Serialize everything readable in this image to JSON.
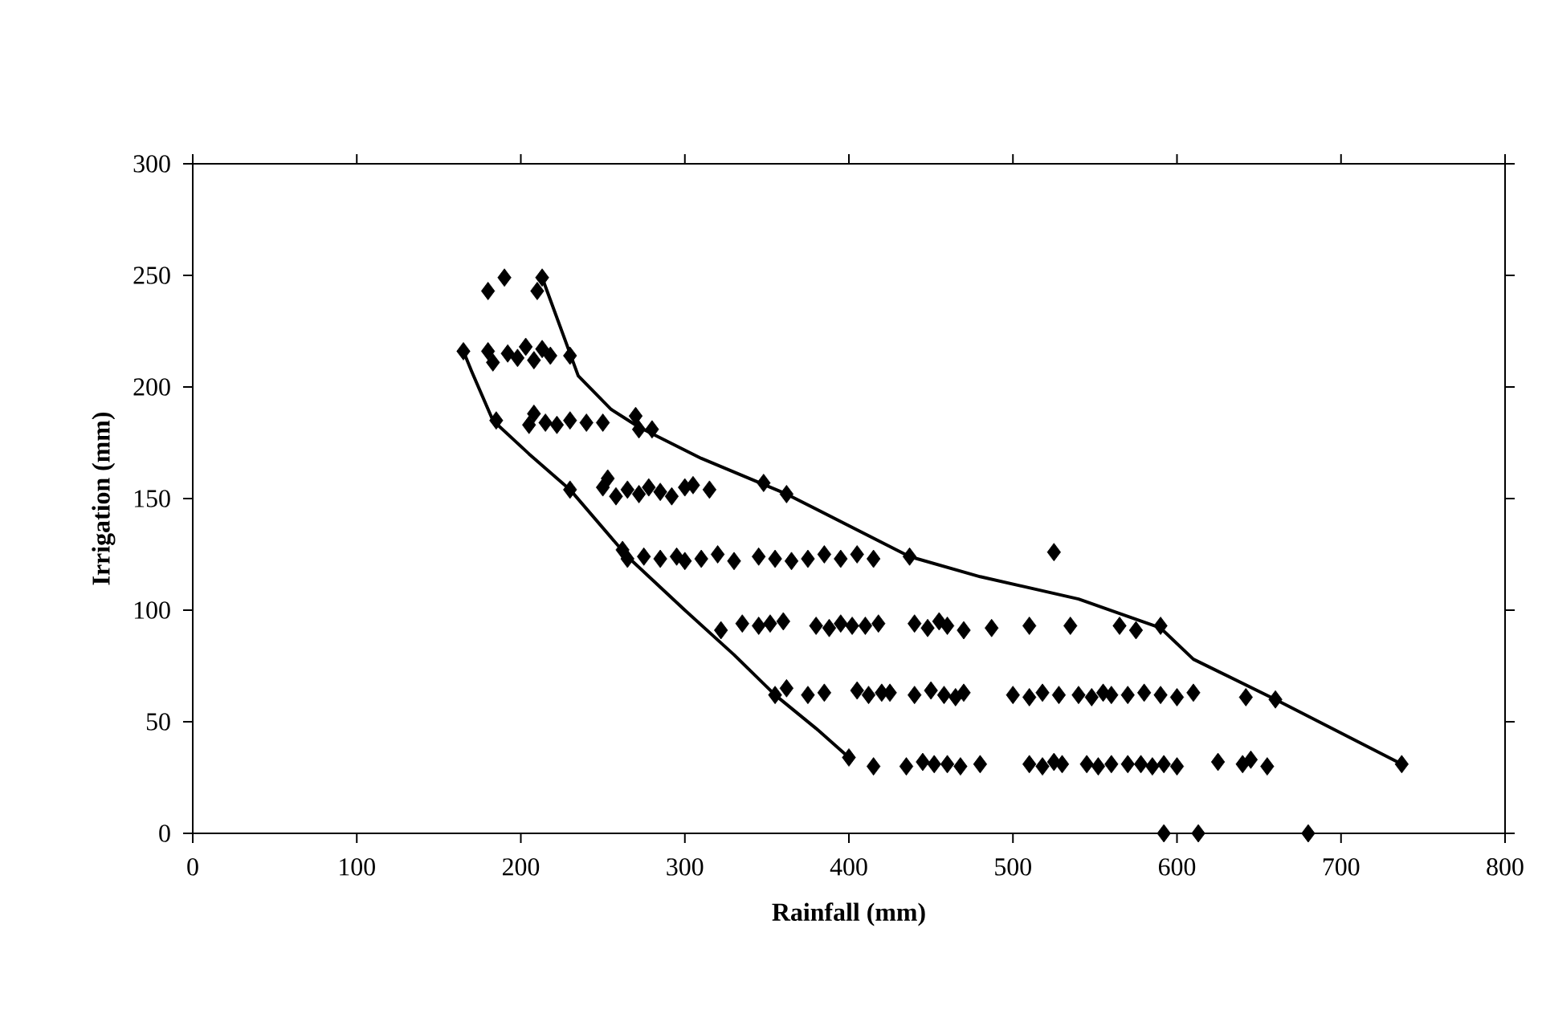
{
  "chart_data": {
    "type": "scatter",
    "xlabel": "Rainfall (mm)",
    "ylabel": "Irrigation (mm)",
    "xlim": [
      0,
      800
    ],
    "ylim": [
      0,
      300
    ],
    "xticks": [
      0,
      100,
      200,
      300,
      400,
      500,
      600,
      700,
      800
    ],
    "yticks": [
      0,
      50,
      100,
      150,
      200,
      250,
      300
    ],
    "grid": false,
    "marker": "diamond",
    "series": [
      {
        "color": "#000000",
        "x": [
          180,
          190,
          210,
          213,
          165,
          180,
          183,
          192,
          198,
          203,
          208,
          213,
          218,
          230,
          185,
          205,
          208,
          215,
          222,
          230,
          240,
          250,
          270,
          272,
          280,
          230,
          250,
          253,
          258,
          265,
          272,
          278,
          285,
          292,
          300,
          305,
          315,
          348,
          362,
          262,
          265,
          275,
          285,
          295,
          300,
          310,
          320,
          330,
          345,
          355,
          365,
          375,
          385,
          395,
          405,
          415,
          437,
          525,
          322,
          335,
          345,
          352,
          360,
          380,
          388,
          395,
          402,
          410,
          418,
          440,
          448,
          455,
          460,
          470,
          487,
          510,
          535,
          565,
          575,
          590,
          355,
          362,
          375,
          385,
          405,
          412,
          420,
          425,
          440,
          450,
          458,
          465,
          470,
          500,
          510,
          518,
          528,
          540,
          548,
          555,
          560,
          570,
          580,
          590,
          600,
          610,
          642,
          660,
          400,
          415,
          435,
          445,
          452,
          460,
          468,
          480,
          510,
          518,
          525,
          530,
          545,
          552,
          560,
          570,
          578,
          585,
          592,
          600,
          625,
          640,
          645,
          655,
          737,
          592,
          613,
          680
        ],
        "values": [
          243,
          249,
          243,
          249,
          216,
          216,
          211,
          215,
          213,
          218,
          212,
          217,
          214,
          214,
          185,
          183,
          188,
          184,
          183,
          185,
          184,
          184,
          187,
          181,
          181,
          154,
          155,
          159,
          151,
          154,
          152,
          155,
          153,
          151,
          155,
          156,
          154,
          157,
          152,
          127,
          123,
          124,
          123,
          124,
          122,
          123,
          125,
          122,
          124,
          123,
          122,
          123,
          125,
          123,
          125,
          123,
          124,
          126,
          91,
          94,
          93,
          94,
          95,
          93,
          92,
          94,
          93,
          93,
          94,
          94,
          92,
          95,
          93,
          91,
          92,
          93,
          93,
          93,
          91,
          93,
          62,
          65,
          62,
          63,
          64,
          62,
          63,
          63,
          62,
          64,
          62,
          61,
          63,
          62,
          61,
          63,
          62,
          62,
          61,
          63,
          62,
          62,
          63,
          62,
          61,
          63,
          61,
          60,
          34,
          30,
          30,
          32,
          31,
          31,
          30,
          31,
          31,
          30,
          32,
          31,
          31,
          30,
          31,
          31,
          31,
          30,
          31,
          30,
          32,
          31,
          33,
          30,
          31,
          0,
          0,
          0
        ]
      },
      {
        "type": "line",
        "color": "#000000",
        "marker": "none",
        "x": [
          165,
          170,
          183,
          205,
          230,
          265,
          300,
          330,
          355,
          380,
          400
        ],
        "values": [
          216,
          207,
          185,
          170,
          154,
          124,
          100,
          80,
          62,
          47,
          34
        ]
      },
      {
        "type": "line",
        "color": "#000000",
        "marker": "none",
        "x": [
          213,
          235,
          255,
          272,
          310,
          362,
          437,
          480,
          540,
          590,
          610,
          660,
          737
        ],
        "values": [
          249,
          205,
          190,
          182,
          168,
          152,
          124,
          115,
          105,
          92,
          78,
          60,
          31
        ]
      }
    ]
  }
}
